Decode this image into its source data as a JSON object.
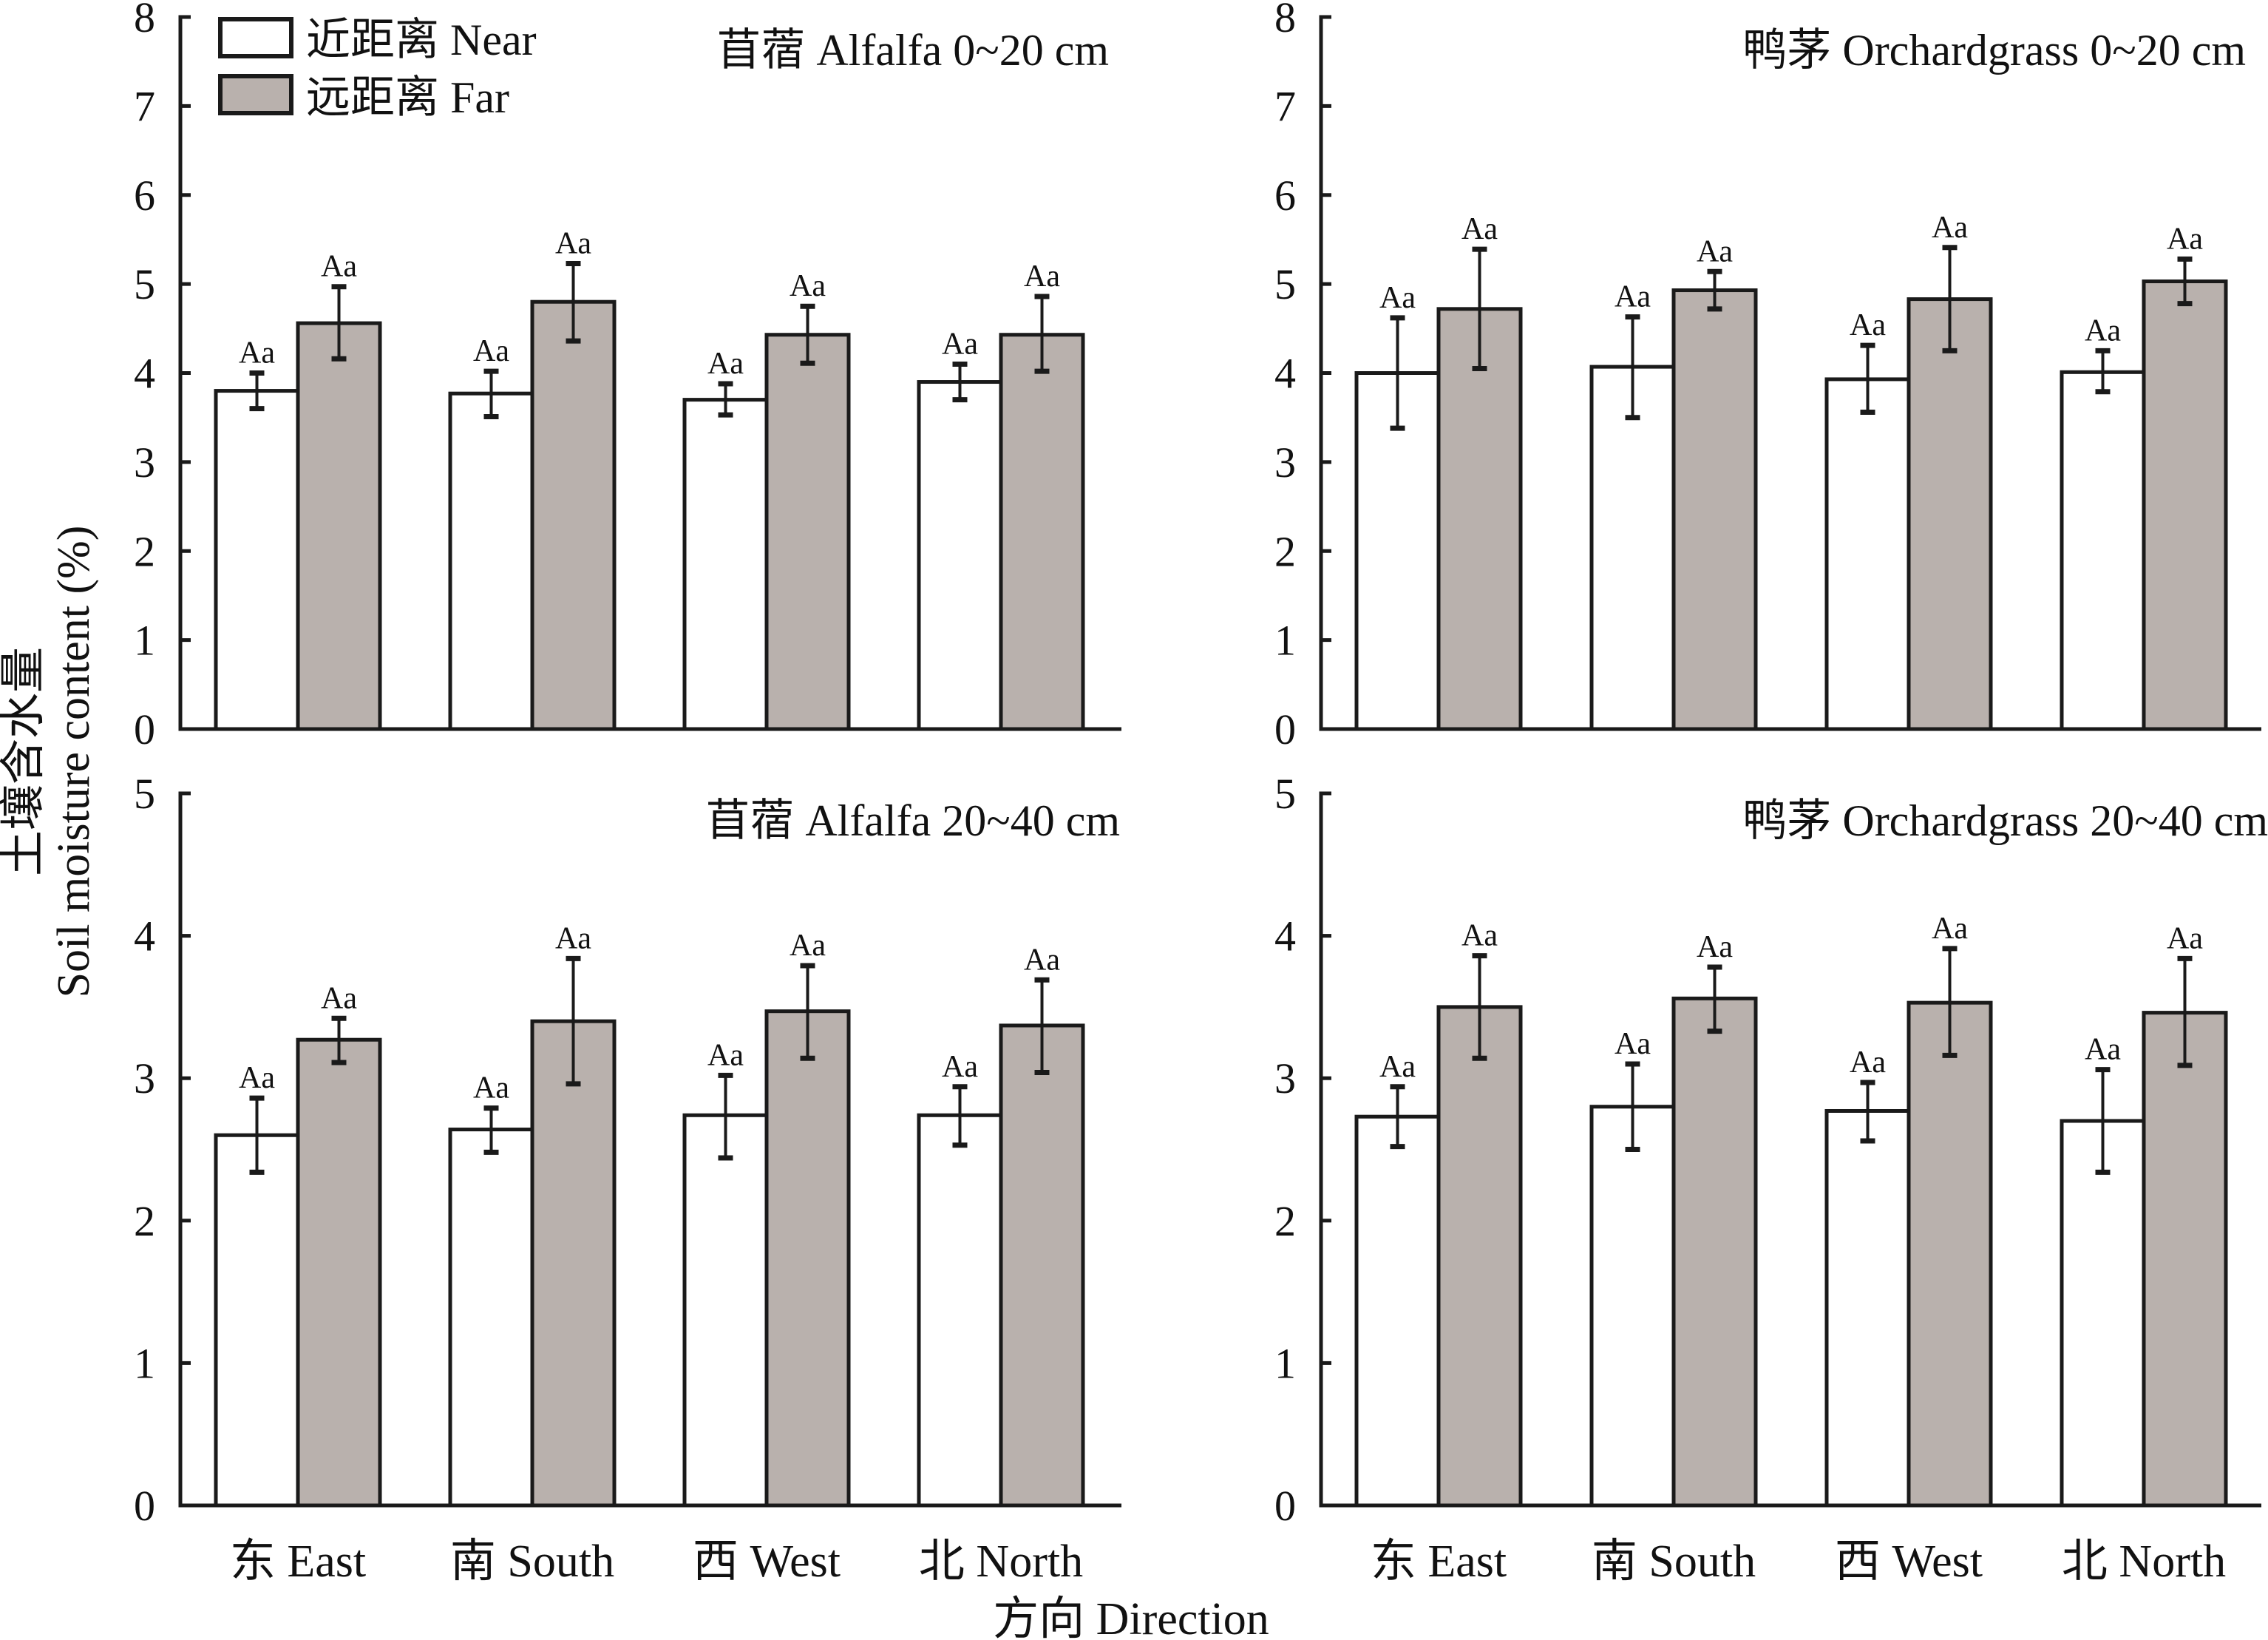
{
  "figure": {
    "y_axis_title_cn": "土壤含水量",
    "y_axis_title_en": "Soil moisture content (%)",
    "x_axis_title": "方向 Direction",
    "legend": [
      {
        "label": "近距离 Near",
        "key": "near",
        "color": "#ffffff"
      },
      {
        "label": "远距离 Far",
        "key": "far",
        "color": "#b9b1ad"
      }
    ]
  },
  "chart_data": [
    {
      "type": "bar",
      "title": "苜蓿 Alfalfa 0~20 cm",
      "position": "top-left",
      "legend_placement": "top-left",
      "categories": [
        "东 East",
        "南 South",
        "西 West",
        "北 North"
      ],
      "ylim": [
        0,
        8
      ],
      "yticks": [
        "0",
        "1",
        "2",
        "3",
        "4",
        "5",
        "6",
        "7",
        "8"
      ],
      "xlabel": "",
      "ylabel": "土壤含水量 Soil moisture content (%)",
      "series": [
        {
          "name": "近距离 Near",
          "values": [
            3.8,
            3.77,
            3.7,
            3.9
          ],
          "err_upper": [
            4.0,
            4.02,
            3.88,
            4.1
          ],
          "err_lower": [
            3.6,
            3.51,
            3.53,
            3.7
          ],
          "labels": [
            "Aa",
            "Aa",
            "Aa",
            "Aa"
          ]
        },
        {
          "name": "远距离 Far",
          "values": [
            4.56,
            4.8,
            4.43,
            4.43
          ],
          "err_upper": [
            4.97,
            5.23,
            4.75,
            4.86
          ],
          "err_lower": [
            4.16,
            4.36,
            4.11,
            4.02
          ],
          "labels": [
            "Aa",
            "Aa",
            "Aa",
            "Aa"
          ]
        }
      ]
    },
    {
      "type": "bar",
      "title": "鸭茅 Orchardgrass  0~20 cm",
      "position": "top-right",
      "categories": [
        "东 East",
        "南 South",
        "西 West",
        "北 North"
      ],
      "ylim": [
        0,
        8
      ],
      "yticks": [
        "0",
        "1",
        "2",
        "3",
        "4",
        "5",
        "6",
        "7",
        "8"
      ],
      "xlabel": "",
      "ylabel": "",
      "series": [
        {
          "name": "近距离 Near",
          "values": [
            4.0,
            4.07,
            3.93,
            4.01
          ],
          "err_upper": [
            4.62,
            4.63,
            4.31,
            4.25
          ],
          "err_lower": [
            3.38,
            3.5,
            3.56,
            3.79
          ],
          "labels": [
            "Aa",
            "Aa",
            "Aa",
            "Aa"
          ]
        },
        {
          "name": "远距离 Far",
          "values": [
            4.72,
            4.93,
            4.83,
            5.03
          ],
          "err_upper": [
            5.39,
            5.14,
            5.41,
            5.28
          ],
          "err_lower": [
            4.05,
            4.72,
            4.25,
            4.78
          ],
          "labels": [
            "Aa",
            "Aa",
            "Aa",
            "Aa"
          ]
        }
      ]
    },
    {
      "type": "bar",
      "title": "苜蓿 Alfalfa 20~40 cm",
      "position": "bottom-left",
      "categories": [
        "东 East",
        "南 South",
        "西 West",
        "北 North"
      ],
      "ylim": [
        0,
        5
      ],
      "yticks": [
        "0",
        "1",
        "2",
        "3",
        "4",
        "5"
      ],
      "xlabel": "方向 Direction",
      "ylabel": "",
      "series": [
        {
          "name": "近距离 Near",
          "values": [
            2.6,
            2.64,
            2.74,
            2.74
          ],
          "err_upper": [
            2.86,
            2.79,
            3.02,
            2.94
          ],
          "err_lower": [
            2.34,
            2.48,
            2.44,
            2.53
          ],
          "labels": [
            "Aa",
            "Aa",
            "Aa",
            "Aa"
          ]
        },
        {
          "name": "远距离 Far",
          "values": [
            3.27,
            3.4,
            3.47,
            3.37
          ],
          "err_upper": [
            3.42,
            3.84,
            3.79,
            3.69
          ],
          "err_lower": [
            3.11,
            2.96,
            3.14,
            3.04
          ],
          "labels": [
            "Aa",
            "Aa",
            "Aa",
            "Aa"
          ]
        }
      ]
    },
    {
      "type": "bar",
      "title": "鸭茅 Orchardgrass  20~40 cm",
      "position": "bottom-right",
      "categories": [
        "东 East",
        "南 South",
        "西 West",
        "北 North"
      ],
      "ylim": [
        0,
        5
      ],
      "yticks": [
        "0",
        "1",
        "2",
        "3",
        "4",
        "5"
      ],
      "xlabel": "方向 Direction",
      "ylabel": "",
      "series": [
        {
          "name": "近距离 Near",
          "values": [
            2.73,
            2.8,
            2.77,
            2.7
          ],
          "err_upper": [
            2.94,
            3.1,
            2.97,
            3.06
          ],
          "err_lower": [
            2.52,
            2.5,
            2.56,
            2.34
          ],
          "labels": [
            "Aa",
            "Aa",
            "Aa",
            "Aa"
          ]
        },
        {
          "name": "远距离 Far",
          "values": [
            3.5,
            3.56,
            3.53,
            3.46
          ],
          "err_upper": [
            3.86,
            3.78,
            3.91,
            3.84
          ],
          "err_lower": [
            3.14,
            3.33,
            3.16,
            3.09
          ],
          "labels": [
            "Aa",
            "Aa",
            "Aa",
            "Aa"
          ]
        }
      ]
    }
  ]
}
